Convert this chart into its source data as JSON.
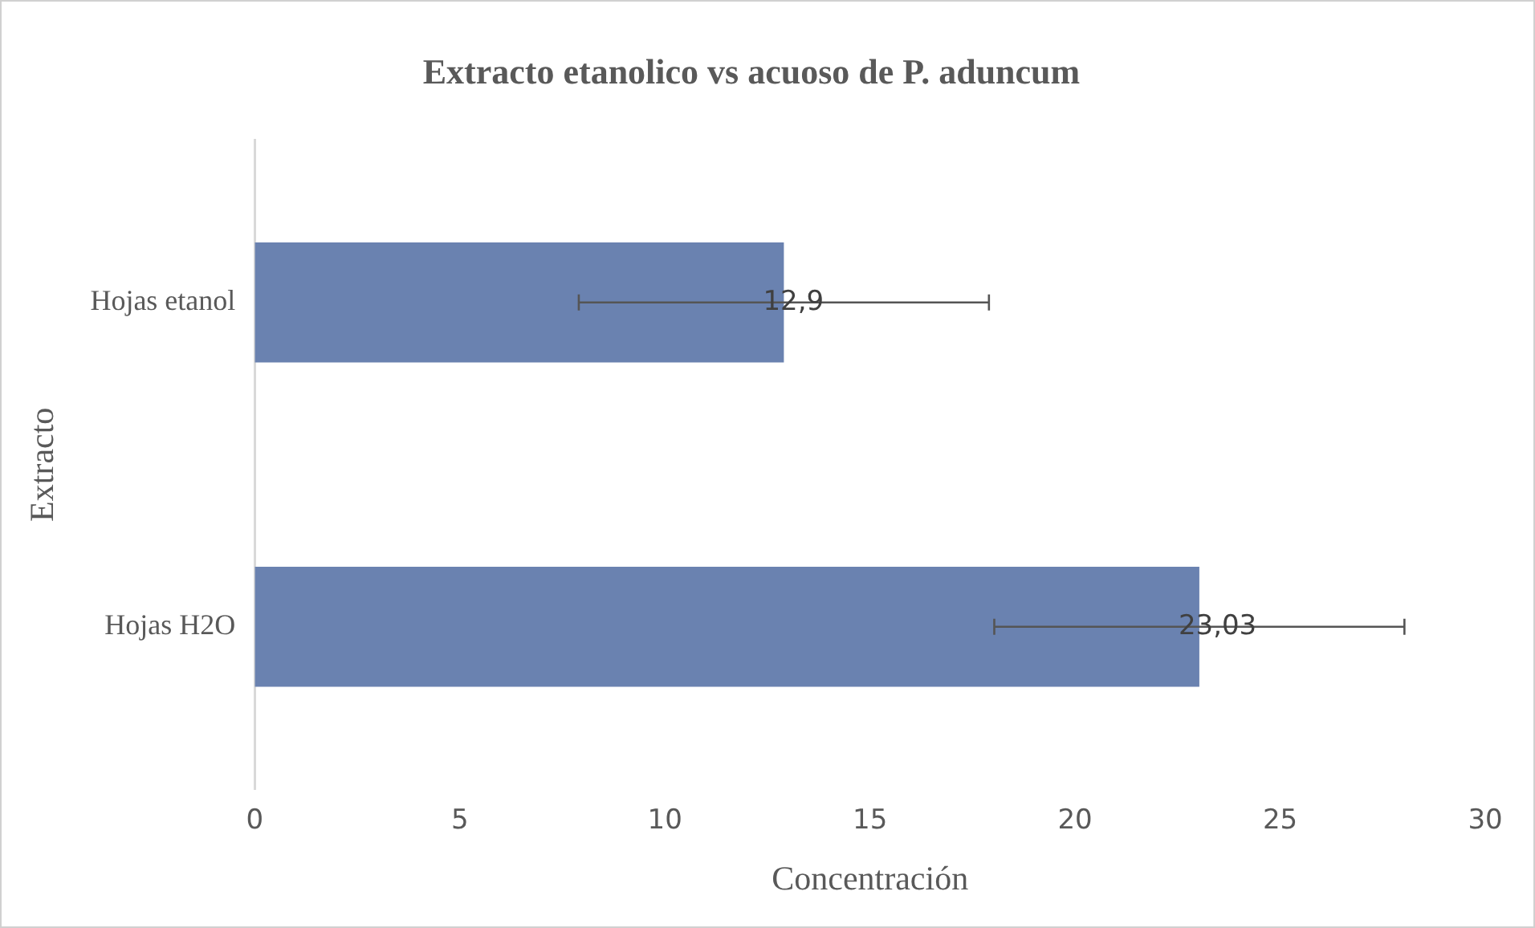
{
  "chart_data": {
    "type": "bar",
    "orientation": "horizontal",
    "title": "Extracto etanolico vs acuoso de P. aduncum",
    "xlabel": "Concentración",
    "ylabel": "Extracto",
    "categories": [
      "Hojas etanol",
      "Hojas H2O"
    ],
    "values": [
      12.9,
      23.03
    ],
    "color": "#6a82b0",
    "errors": [
      5,
      5
    ],
    "value_labels": [
      "12,9",
      "23,03"
    ],
    "xlim": [
      0,
      30
    ],
    "xticks": [
      0,
      5,
      10,
      15,
      20,
      25,
      30
    ],
    "grid": false,
    "legend": false
  }
}
